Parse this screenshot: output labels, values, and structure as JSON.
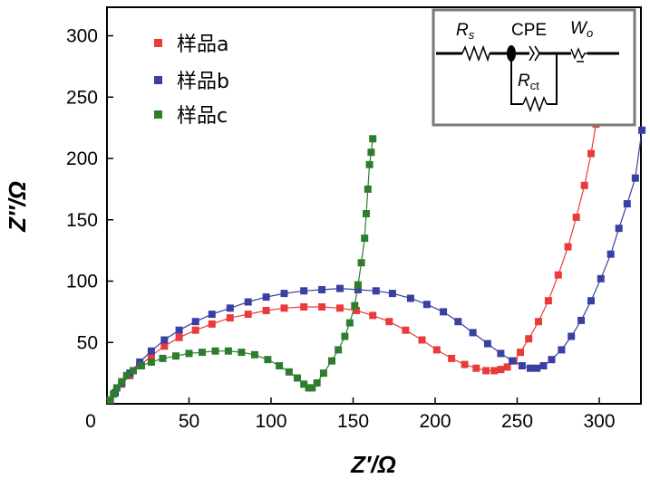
{
  "chart_data": {
    "type": "scatter",
    "xlabel": "Z′/Ω",
    "ylabel": "Z″/Ω",
    "xlim": [
      0,
      330
    ],
    "ylim": [
      0,
      330
    ],
    "xticks": [
      0,
      50,
      100,
      150,
      200,
      250,
      300
    ],
    "yticks": [
      50,
      100,
      150,
      200,
      250,
      300
    ],
    "legend_position": "top-left",
    "series": [
      {
        "name": "样品a",
        "color": "#ea3b3b",
        "x": [
          2,
          5,
          9,
          14,
          20,
          27,
          35,
          44,
          54,
          64,
          75,
          86,
          97,
          108,
          120,
          131,
          142,
          152,
          162,
          172,
          182,
          192,
          201,
          210,
          218,
          225,
          231,
          236,
          240,
          244,
          248,
          252,
          257,
          263,
          269,
          275,
          281,
          286,
          291,
          295,
          298
        ],
        "y": [
          3,
          9,
          16,
          23,
          31,
          39,
          47,
          54,
          60,
          65,
          70,
          73,
          76,
          78,
          79,
          79,
          78,
          76,
          72,
          67,
          60,
          52,
          44,
          37,
          32,
          29,
          27,
          27,
          28,
          30,
          35,
          42,
          53,
          67,
          84,
          105,
          128,
          152,
          178,
          204,
          228
        ]
      },
      {
        "name": "样品b",
        "color": "#3a3fa4",
        "x": [
          2,
          5,
          9,
          14,
          20,
          27,
          35,
          44,
          54,
          64,
          75,
          86,
          97,
          108,
          120,
          131,
          142,
          153,
          164,
          174,
          185,
          195,
          205,
          214,
          223,
          232,
          240,
          247,
          253,
          258,
          262,
          266,
          271,
          277,
          283,
          289,
          295,
          301,
          307,
          312,
          317,
          322,
          326
        ],
        "y": [
          3,
          9,
          17,
          25,
          34,
          43,
          52,
          60,
          67,
          73,
          78,
          83,
          87,
          90,
          92,
          93,
          94,
          93,
          92,
          90,
          86,
          81,
          75,
          67,
          58,
          49,
          41,
          35,
          31,
          29,
          29,
          31,
          36,
          44,
          55,
          68,
          84,
          102,
          122,
          143,
          163,
          184,
          223
        ]
      },
      {
        "name": "样品c",
        "color": "#2e7d2e",
        "x": [
          2,
          4,
          6,
          9,
          12,
          16,
          21,
          27,
          34,
          42,
          50,
          58,
          66,
          74,
          82,
          90,
          98,
          105,
          111,
          116,
          120,
          123,
          125,
          128,
          132,
          137,
          141,
          145,
          148,
          151,
          153,
          155,
          157,
          158,
          159,
          160,
          161,
          162
        ],
        "y": [
          3,
          8,
          13,
          18,
          23,
          27,
          31,
          34,
          37,
          39,
          41,
          42,
          43,
          43,
          42,
          40,
          36,
          31,
          26,
          21,
          16,
          13,
          13,
          17,
          25,
          35,
          44,
          55,
          66,
          80,
          97,
          115,
          135,
          155,
          175,
          195,
          205,
          216
        ]
      }
    ],
    "inset": {
      "labels": [
        "R",
        "s",
        "CPE",
        "W",
        "o",
        "R",
        "ct"
      ]
    }
  }
}
